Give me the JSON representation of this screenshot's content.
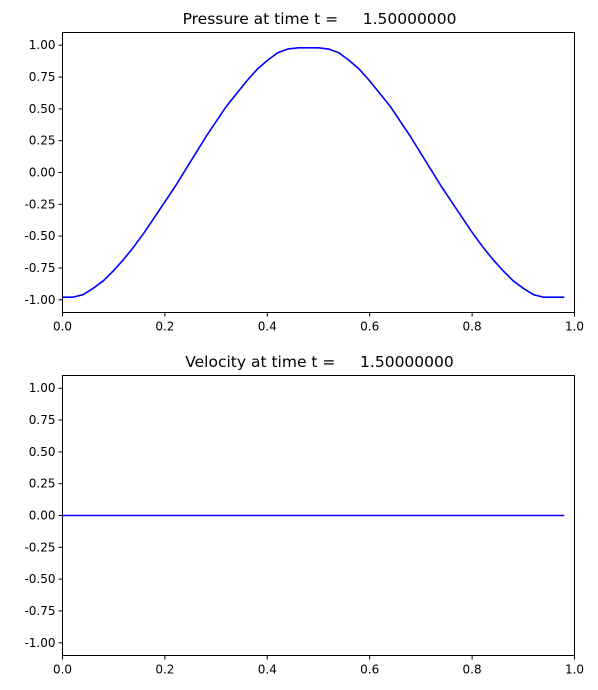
{
  "chart_data": [
    {
      "type": "line",
      "title": "Pressure at time t =     1.50000000",
      "xlabel": "",
      "ylabel": "",
      "xlim": [
        0.0,
        1.0
      ],
      "ylim": [
        -1.1,
        1.1
      ],
      "xticks": [
        "0.0",
        "0.2",
        "0.4",
        "0.6",
        "0.8",
        "1.0"
      ],
      "yticks": [
        "1.00",
        "0.75",
        "0.50",
        "0.25",
        "0.00",
        "-0.25",
        "-0.50",
        "-0.75",
        "-1.00"
      ],
      "grid": false,
      "color": "#0000ff",
      "series": [
        {
          "x": [
            0.0,
            0.02,
            0.04,
            0.06,
            0.08,
            0.1,
            0.12,
            0.14,
            0.16,
            0.18,
            0.2,
            0.22,
            0.24,
            0.26,
            0.28,
            0.3,
            0.32,
            0.34,
            0.36,
            0.38,
            0.4,
            0.42,
            0.44,
            0.46,
            0.48,
            0.5,
            0.52,
            0.54,
            0.56,
            0.58,
            0.6,
            0.62,
            0.64,
            0.66,
            0.68,
            0.7,
            0.72,
            0.74,
            0.76,
            0.78,
            0.8,
            0.82,
            0.84,
            0.86,
            0.88,
            0.9,
            0.92,
            0.94,
            0.96,
            0.98
          ],
          "y": [
            -0.98,
            -0.98,
            -0.96,
            -0.91,
            -0.85,
            -0.77,
            -0.68,
            -0.58,
            -0.47,
            -0.35,
            -0.23,
            -0.11,
            0.02,
            0.15,
            0.28,
            0.4,
            0.52,
            0.62,
            0.72,
            0.81,
            0.88,
            0.94,
            0.97,
            0.98,
            0.98,
            0.98,
            0.97,
            0.94,
            0.88,
            0.81,
            0.72,
            0.62,
            0.52,
            0.4,
            0.28,
            0.15,
            0.02,
            -0.11,
            -0.23,
            -0.35,
            -0.47,
            -0.58,
            -0.68,
            -0.77,
            -0.85,
            -0.91,
            -0.96,
            -0.98,
            -0.98,
            -0.98
          ]
        }
      ]
    },
    {
      "type": "line",
      "title": "Velocity at time t =     1.50000000",
      "xlabel": "",
      "ylabel": "",
      "xlim": [
        0.0,
        1.0
      ],
      "ylim": [
        -1.1,
        1.1
      ],
      "xticks": [
        "0.0",
        "0.2",
        "0.4",
        "0.6",
        "0.8",
        "1.0"
      ],
      "yticks": [
        "1.00",
        "0.75",
        "0.50",
        "0.25",
        "0.00",
        "-0.25",
        "-0.50",
        "-0.75",
        "-1.00"
      ],
      "grid": false,
      "color": "#0000ff",
      "series": [
        {
          "x": [
            0.0,
            0.2,
            0.4,
            0.6,
            0.8,
            0.98
          ],
          "y": [
            0.0,
            0.0,
            0.0,
            0.0,
            0.0,
            0.0
          ]
        }
      ]
    }
  ]
}
